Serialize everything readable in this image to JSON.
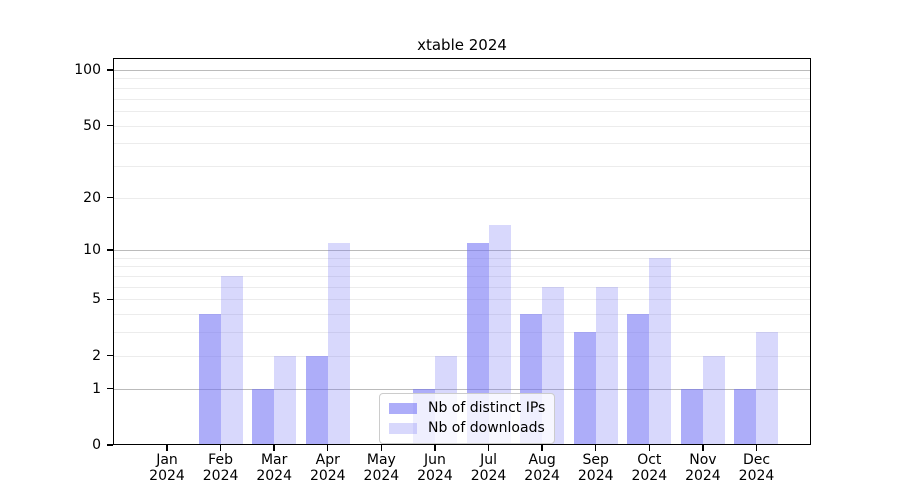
{
  "title": "xtable 2024",
  "chart_data": {
    "type": "bar",
    "title": "xtable 2024",
    "categories": [
      "Jan",
      "Feb",
      "Mar",
      "Apr",
      "May",
      "Jun",
      "Jul",
      "Aug",
      "Sep",
      "Oct",
      "Nov",
      "Dec"
    ],
    "category_year": "2024",
    "series": [
      {
        "name": "Nb of distinct IPs",
        "color": "#6e6ef5",
        "alpha": 0.57,
        "values": [
          0,
          4,
          1,
          2,
          0,
          1,
          11,
          4,
          3,
          4,
          1,
          1
        ]
      },
      {
        "name": "Nb of downloads",
        "color": "#6e6ef5",
        "alpha": 0.27,
        "values": [
          0,
          7,
          2,
          11,
          0,
          2,
          14,
          6,
          6,
          9,
          2,
          3
        ]
      }
    ],
    "xlabel": "",
    "ylabel": "",
    "yscale": "log1p",
    "ylim": [
      0,
      117
    ],
    "y_ticks": [
      0,
      1,
      2,
      5,
      10,
      20,
      50,
      100
    ],
    "y_major_gridlines": [
      1,
      10,
      100
    ],
    "y_minor_gridlines": [
      2,
      3,
      4,
      5,
      6,
      7,
      8,
      9,
      20,
      30,
      40,
      50,
      60,
      70,
      80,
      90
    ],
    "grid": "on",
    "legend_position": "inside-bottom-center"
  },
  "legend": {
    "items": [
      {
        "label": "Nb of distinct IPs"
      },
      {
        "label": "Nb of downloads"
      }
    ]
  },
  "colors": {
    "bar_distinct_ips": "#a8a8f4",
    "bar_downloads": "#d8d8f7",
    "gridline_minor": "#ececec",
    "gridline_major": "#bbbbbb",
    "axis": "#000000",
    "legend_border": "#cccccc",
    "background": "#ffffff"
  }
}
